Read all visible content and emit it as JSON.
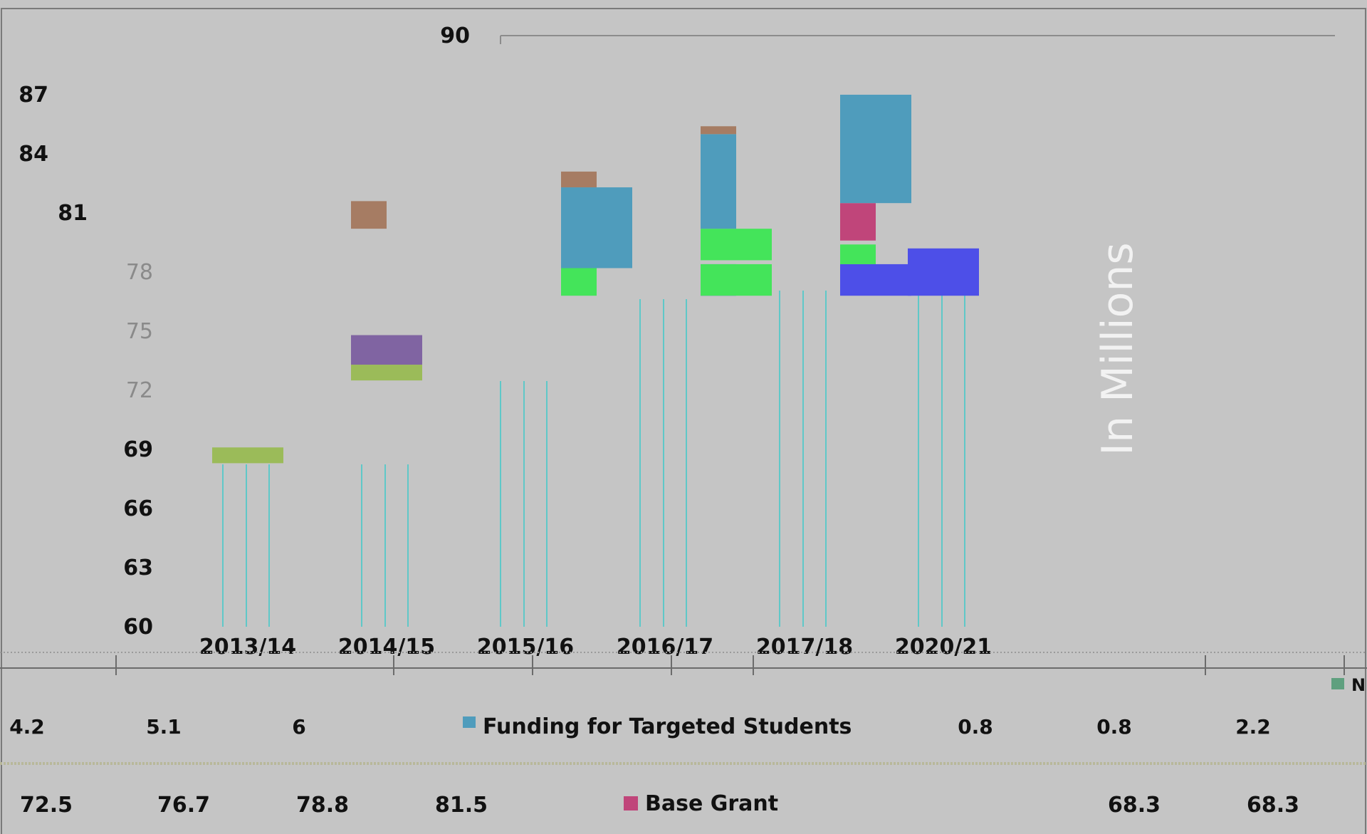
{
  "chart_data": {
    "type": "bar",
    "title": "",
    "ylabel": "In Millions",
    "ylim": [
      60,
      90
    ],
    "y_ticks": [
      "90",
      "87",
      "84",
      "81",
      "78",
      "75",
      "72",
      "69",
      "66",
      "63",
      "60"
    ],
    "categories": [
      "2013/14",
      "2014/15",
      "2015/16",
      "2016/17",
      "2017/18",
      "2020/21"
    ],
    "segments": [
      {
        "category": "2013/14",
        "bottom": 68.3,
        "top": 69.1,
        "color": "#9bbb59"
      },
      {
        "category": "2014/15",
        "bottom": 72.5,
        "top": 73.3,
        "color": "#9bbb59"
      },
      {
        "category": "2014/15",
        "bottom": 73.3,
        "top": 74.8,
        "color": "#8064a2"
      },
      {
        "category": "2014/15",
        "bottom": 80.2,
        "top": 81.6,
        "color": "#a67c63"
      },
      {
        "category": "2015/16",
        "bottom": 76.8,
        "top": 78.6,
        "color": "#44e45a"
      },
      {
        "category": "2015/16",
        "bottom": 78.2,
        "top": 82.3,
        "color": "#4f9cbc"
      },
      {
        "category": "2015/16",
        "bottom": 82.3,
        "top": 83.1,
        "color": "#a67c63"
      },
      {
        "category": "2016/17",
        "bottom": 76.8,
        "top": 78.4,
        "color": "#4d4fe8"
      },
      {
        "category": "2016/17",
        "bottom": 76.8,
        "top": 78.4,
        "color": "#44e45a"
      },
      {
        "category": "2016/17",
        "bottom": 78.6,
        "top": 80.2,
        "color": "#44e45a"
      },
      {
        "category": "2016/17",
        "bottom": 80.2,
        "top": 85.0,
        "color": "#4f9cbc"
      },
      {
        "category": "2016/17",
        "bottom": 85.0,
        "top": 85.4,
        "color": "#a67c63"
      },
      {
        "category": "2017/18",
        "bottom": 76.8,
        "top": 78.4,
        "color": "#4d4fe8"
      },
      {
        "category": "2017/18",
        "bottom": 78.4,
        "top": 79.4,
        "color": "#44e45a"
      },
      {
        "category": "2017/18",
        "bottom": 79.6,
        "top": 81.5,
        "color": "#c0457a"
      },
      {
        "category": "2017/18",
        "bottom": 81.5,
        "top": 87.0,
        "color": "#4f9cbc"
      },
      {
        "category": "2020/21",
        "bottom": 76.8,
        "top": 79.2,
        "color": "#4d4fe8"
      }
    ],
    "legend": [
      {
        "label": "Funding for Targeted Students",
        "color": "#4f9cbc"
      },
      {
        "label": "Base Grant",
        "color": "#c0457a"
      }
    ],
    "table": {
      "rows": [
        [
          "4.2",
          "5.1",
          "6",
          "",
          "0.8",
          "0.8",
          "2.2"
        ],
        [
          "72.5",
          "76.7",
          "78.8",
          "81.5",
          "",
          "",
          "68.3",
          "68.3"
        ]
      ]
    },
    "legend_partial": "N",
    "grid": false
  }
}
